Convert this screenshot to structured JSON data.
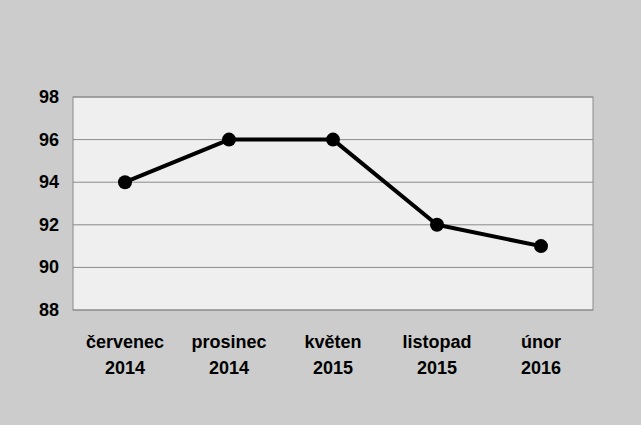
{
  "chart_data": {
    "type": "line",
    "categories": [
      "červenec 2014",
      "prosinec 2014",
      "květen 2015",
      "listopad 2015",
      "únor 2016"
    ],
    "values": [
      94,
      96,
      96,
      92,
      91
    ],
    "color": "#000000",
    "marker": "circle",
    "ylim": [
      88,
      98
    ],
    "yticks": [
      88,
      90,
      92,
      94,
      96,
      98
    ],
    "grid": true
  }
}
